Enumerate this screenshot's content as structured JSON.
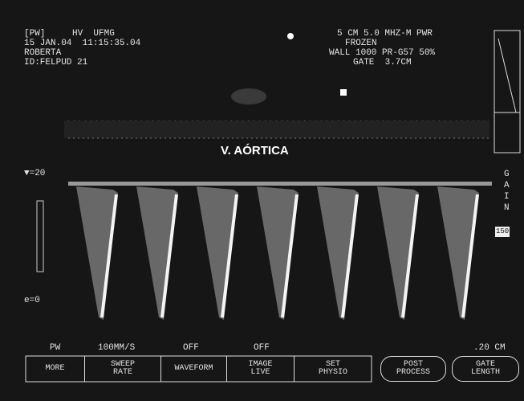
{
  "header": {
    "mode": "[PW]",
    "site": "HV  UFMG",
    "datetime": "15 JAN.04  11:15:35.04",
    "patient": "ROBERTA",
    "id": "ID:FELPUD 21"
  },
  "settings": {
    "line1": "5 CM 5.0 MHZ-M PWR",
    "status": "FROZEN",
    "line3": "WALL 1000 PR-G57 50%",
    "gate": "GATE  3.7CM"
  },
  "label": "V. AÓRTICA",
  "scale": {
    "top": "▼=20",
    "bottom": "e=0"
  },
  "gain": {
    "label": "GAIN",
    "value": "150"
  },
  "status_bar": [
    "PW",
    "100MM/S",
    "OFF",
    "OFF",
    ".20 CM"
  ],
  "buttons": [
    {
      "label": "MORE"
    },
    {
      "label": "SWEEP RATE"
    },
    {
      "label": "WAVEFORM"
    },
    {
      "label": "IMAGE LIVE"
    },
    {
      "label": "SET PHYSIO"
    },
    {
      "label": "POST PROCESS"
    },
    {
      "label": "GATE LENGTH"
    }
  ]
}
